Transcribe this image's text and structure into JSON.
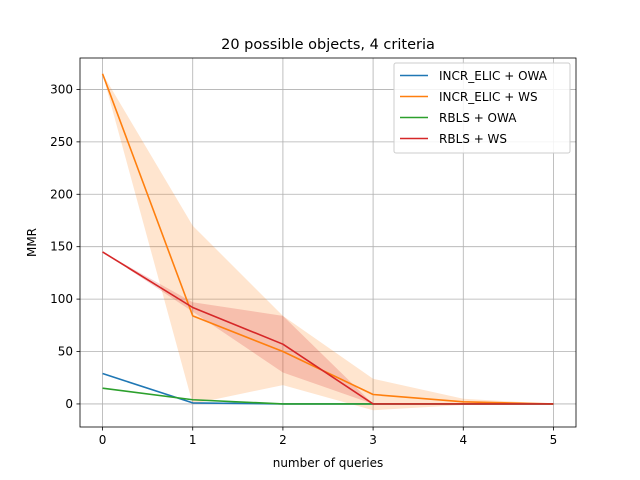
{
  "chart_data": {
    "type": "line",
    "title": "20 possible objects, 4 criteria",
    "xlabel": "number of queries",
    "ylabel": "MMR",
    "x": [
      0,
      1,
      2,
      3,
      4,
      5
    ],
    "xlim": [
      -0.25,
      5.25
    ],
    "ylim": [
      -22,
      330
    ],
    "x_ticks": [
      0,
      1,
      2,
      3,
      4,
      5
    ],
    "y_ticks": [
      0,
      50,
      100,
      150,
      200,
      250,
      300
    ],
    "grid": true,
    "legend_position": "top-right",
    "series": [
      {
        "name": "INCR_ELIC + OWA",
        "color": "#1f77b4",
        "values": [
          29,
          1,
          0,
          0,
          0,
          0
        ],
        "band_low": [
          29,
          1,
          0,
          0,
          0,
          0
        ],
        "band_high": [
          29,
          1,
          0,
          0,
          0,
          0
        ]
      },
      {
        "name": "INCR_ELIC + WS",
        "color": "#ff7f0e",
        "values": [
          315,
          84,
          50,
          9,
          2,
          0
        ],
        "band_low": [
          315,
          0,
          18,
          -6,
          -1,
          0
        ],
        "band_high": [
          315,
          170,
          84,
          24,
          5,
          0
        ]
      },
      {
        "name": "RBLS + OWA",
        "color": "#2ca02c",
        "values": [
          15,
          4,
          0,
          0,
          0,
          0
        ],
        "band_low": [
          15,
          4,
          0,
          0,
          0,
          0
        ],
        "band_high": [
          15,
          4,
          0,
          0,
          0,
          0
        ]
      },
      {
        "name": "RBLS + WS",
        "color": "#d62728",
        "values": [
          145,
          92,
          57,
          0,
          0,
          0
        ],
        "band_low": [
          145,
          88,
          30,
          0,
          0,
          0
        ],
        "band_high": [
          145,
          97,
          84,
          0,
          0,
          0
        ]
      }
    ]
  }
}
